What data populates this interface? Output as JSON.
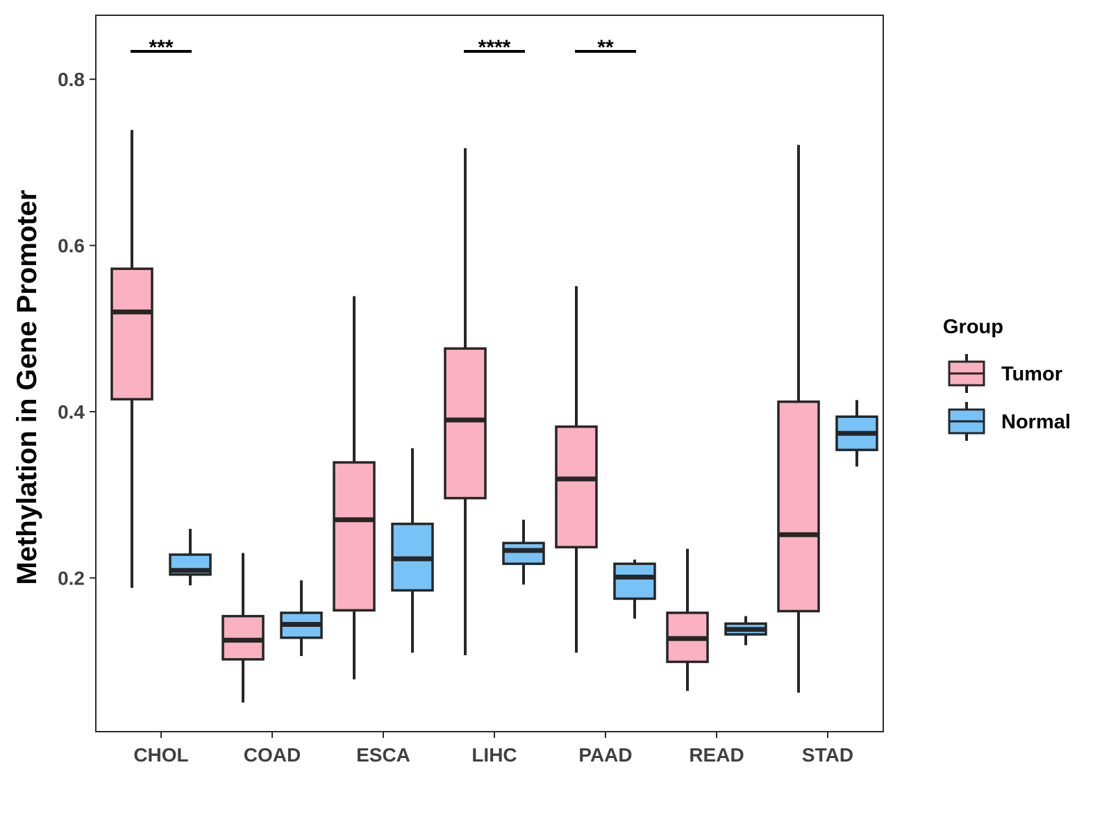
{
  "chart_data": {
    "type": "boxplot",
    "title": "",
    "xlabel": "",
    "ylabel": "Methylation in Gene Promoter",
    "ylim": [
      0.015,
      0.877
    ],
    "yticks": [
      0.2,
      0.4,
      0.6,
      0.8
    ],
    "ytick_labels": [
      "0.2",
      "0.4",
      "0.6",
      "0.8"
    ],
    "categories": [
      "CHOL",
      "COAD",
      "ESCA",
      "LIHC",
      "PAAD",
      "READ",
      "STAD"
    ],
    "legend": {
      "title": "Group",
      "position": "right",
      "entries": [
        {
          "name": "Tumor",
          "color": "#fbb1c1"
        },
        {
          "name": "Normal",
          "color": "#77c3f8"
        }
      ]
    },
    "series": [
      {
        "name": "Tumor",
        "color": "#fbb1c1",
        "boxes": [
          {
            "min": 0.188,
            "q1": 0.415,
            "median": 0.52,
            "q3": 0.572,
            "max": 0.739
          },
          {
            "min": 0.05,
            "q1": 0.102,
            "median": 0.125,
            "q3": 0.154,
            "max": 0.23
          },
          {
            "min": 0.078,
            "q1": 0.161,
            "median": 0.27,
            "q3": 0.339,
            "max": 0.539
          },
          {
            "min": 0.107,
            "q1": 0.296,
            "median": 0.39,
            "q3": 0.476,
            "max": 0.717
          },
          {
            "min": 0.11,
            "q1": 0.237,
            "median": 0.319,
            "q3": 0.382,
            "max": 0.551
          },
          {
            "min": 0.064,
            "q1": 0.099,
            "median": 0.127,
            "q3": 0.158,
            "max": 0.235
          },
          {
            "min": 0.062,
            "q1": 0.16,
            "median": 0.252,
            "q3": 0.412,
            "max": 0.721
          }
        ]
      },
      {
        "name": "Normal",
        "color": "#77c3f8",
        "boxes": [
          {
            "min": 0.191,
            "q1": 0.204,
            "median": 0.209,
            "q3": 0.228,
            "max": 0.259
          },
          {
            "min": 0.106,
            "q1": 0.128,
            "median": 0.144,
            "q3": 0.158,
            "max": 0.197
          },
          {
            "min": 0.11,
            "q1": 0.185,
            "median": 0.223,
            "q3": 0.265,
            "max": 0.356
          },
          {
            "min": 0.192,
            "q1": 0.217,
            "median": 0.233,
            "q3": 0.242,
            "max": 0.27
          },
          {
            "min": 0.151,
            "q1": 0.175,
            "median": 0.201,
            "q3": 0.217,
            "max": 0.222
          },
          {
            "min": 0.119,
            "q1": 0.132,
            "median": 0.138,
            "q3": 0.145,
            "max": 0.154
          },
          {
            "min": 0.334,
            "q1": 0.354,
            "median": 0.374,
            "q3": 0.394,
            "max": 0.414
          }
        ]
      }
    ],
    "significance": [
      {
        "category": "CHOL",
        "label": "***"
      },
      {
        "category": "LIHC",
        "label": "****"
      },
      {
        "category": "PAAD",
        "label": "**"
      }
    ]
  }
}
